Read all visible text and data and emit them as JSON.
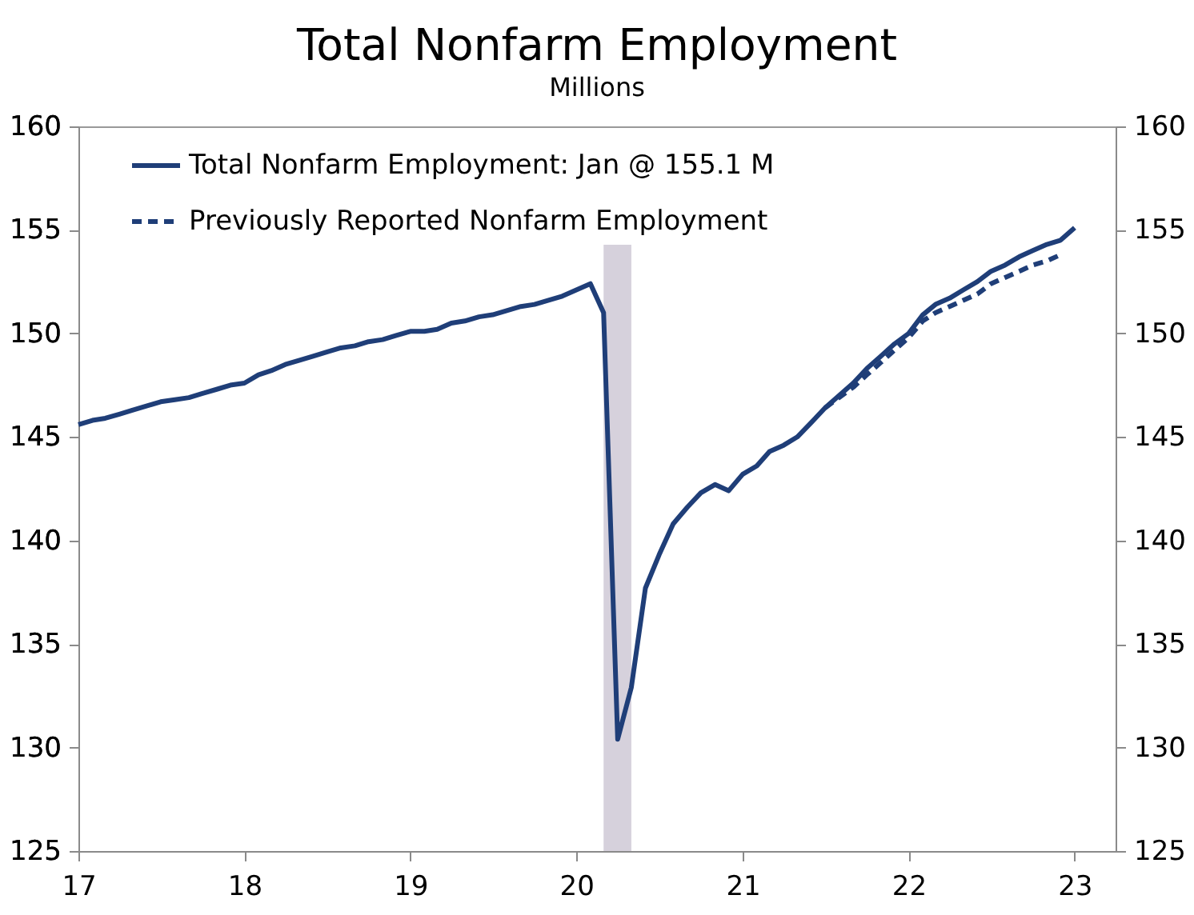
{
  "chart_data": {
    "type": "line",
    "title": "Total Nonfarm Employment",
    "subtitle": "Millions",
    "x": [
      "2017-01",
      "2017-02",
      "2017-03",
      "2017-04",
      "2017-05",
      "2017-06",
      "2017-07",
      "2017-08",
      "2017-09",
      "2017-10",
      "2017-11",
      "2017-12",
      "2018-01",
      "2018-02",
      "2018-03",
      "2018-04",
      "2018-05",
      "2018-06",
      "2018-07",
      "2018-08",
      "2018-09",
      "2018-10",
      "2018-11",
      "2018-12",
      "2019-01",
      "2019-02",
      "2019-03",
      "2019-04",
      "2019-05",
      "2019-06",
      "2019-07",
      "2019-08",
      "2019-09",
      "2019-10",
      "2019-11",
      "2019-12",
      "2020-01",
      "2020-02",
      "2020-03",
      "2020-04",
      "2020-05",
      "2020-06",
      "2020-07",
      "2020-08",
      "2020-09",
      "2020-10",
      "2020-11",
      "2020-12",
      "2021-01",
      "2021-02",
      "2021-03",
      "2021-04",
      "2021-05",
      "2021-06",
      "2021-07",
      "2021-08",
      "2021-09",
      "2021-10",
      "2021-11",
      "2021-12",
      "2022-01",
      "2022-02",
      "2022-03",
      "2022-04",
      "2022-05",
      "2022-06",
      "2022-07",
      "2022-08",
      "2022-09",
      "2022-10",
      "2022-11",
      "2022-12",
      "2023-01"
    ],
    "series": [
      {
        "name": "Total Nonfarm Employment: Jan @ 155.1 M",
        "color": "#1f3e78",
        "line_style": "solid",
        "values": [
          145.6,
          145.8,
          145.9,
          146.1,
          146.3,
          146.5,
          146.7,
          146.8,
          146.9,
          147.1,
          147.3,
          147.5,
          147.6,
          148.0,
          148.2,
          148.5,
          148.7,
          148.9,
          149.1,
          149.3,
          149.4,
          149.6,
          149.7,
          149.9,
          150.1,
          150.1,
          150.2,
          150.5,
          150.6,
          150.8,
          150.9,
          151.1,
          151.3,
          151.4,
          151.6,
          151.8,
          152.1,
          152.4,
          151.0,
          130.4,
          132.9,
          137.7,
          139.3,
          140.8,
          141.6,
          142.3,
          142.7,
          142.4,
          143.2,
          143.6,
          144.3,
          144.6,
          145.0,
          145.7,
          146.4,
          147.0,
          147.6,
          148.3,
          148.9,
          149.5,
          150.0,
          150.9,
          151.4,
          151.7,
          152.1,
          152.5,
          153.0,
          153.3,
          153.7,
          154.0,
          154.3,
          154.5,
          155.1
        ]
      },
      {
        "name": "Previously Reported Nonfarm Employment",
        "color": "#1f3e78",
        "line_style": "dashed",
        "x": [
          "2021-07",
          "2021-08",
          "2021-09",
          "2021-10",
          "2021-11",
          "2021-12",
          "2022-01",
          "2022-02",
          "2022-03",
          "2022-04",
          "2022-05",
          "2022-06",
          "2022-07",
          "2022-08",
          "2022-09",
          "2022-10",
          "2022-11",
          "2022-12"
        ],
        "values": [
          146.4,
          146.9,
          147.4,
          148.0,
          148.6,
          149.2,
          149.8,
          150.6,
          151.0,
          151.3,
          151.6,
          151.9,
          152.4,
          152.7,
          153.0,
          153.3,
          153.5,
          153.8
        ]
      }
    ],
    "xlim": [
      "2017-01",
      "2023-04"
    ],
    "xticks": [
      {
        "value": "2017",
        "label": "17"
      },
      {
        "value": "2018",
        "label": "18"
      },
      {
        "value": "2019",
        "label": "19"
      },
      {
        "value": "2020",
        "label": "20"
      },
      {
        "value": "2021",
        "label": "21"
      },
      {
        "value": "2022",
        "label": "22"
      },
      {
        "value": "2023",
        "label": "23"
      }
    ],
    "ylim": [
      125,
      160
    ],
    "yticks": [
      125,
      130,
      135,
      140,
      145,
      150,
      155,
      160
    ],
    "y2lim": [
      125,
      160
    ],
    "y2ticks": [
      125,
      130,
      135,
      140,
      145,
      150,
      155,
      160
    ],
    "bands": [
      {
        "axis": "x",
        "from": "2020-03",
        "to": "2020-05",
        "color": "#d6d1dc"
      }
    ],
    "grid": false,
    "legend": "top left"
  }
}
